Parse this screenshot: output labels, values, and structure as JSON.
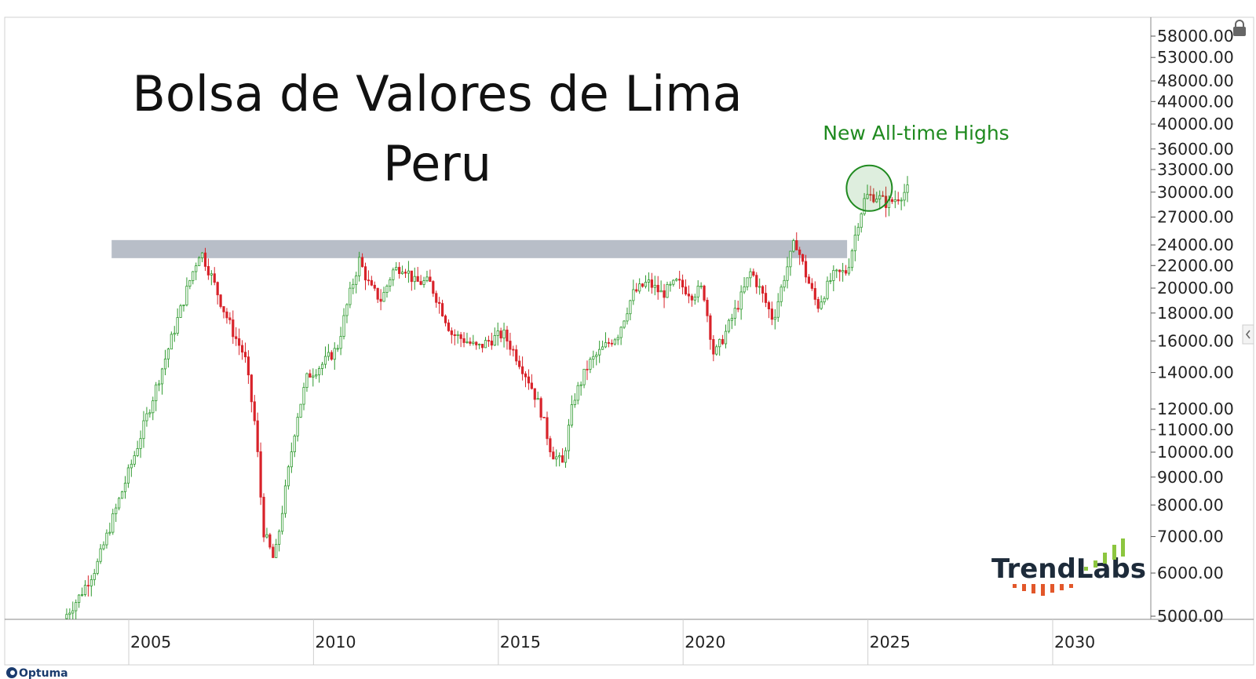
{
  "chart_data": {
    "type": "candlestick",
    "title": "Bolsa de Valores de Lima",
    "subtitle": "Peru",
    "annotation": "New All-time Highs",
    "y_scale": "log",
    "ylim": [
      4900,
      60000
    ],
    "xlim": [
      2002.4,
      2034.3
    ],
    "y_ticks": [
      58000,
      53000,
      48000,
      44000,
      40000,
      36000,
      33000,
      30000,
      27000,
      24000,
      22000,
      20000,
      18000,
      16000,
      14000,
      12000,
      11000,
      10000,
      9000,
      8000,
      7000,
      6000,
      5000
    ],
    "y_tick_labels": [
      "58000.00",
      "53000.00",
      "48000.00",
      "44000.00",
      "40000.00",
      "36000.00",
      "33000.00",
      "30000.00",
      "27000.00",
      "24000.00",
      "22000.00",
      "20000.00",
      "18000.00",
      "16000.00",
      "14000.00",
      "12000.00",
      "11000.00",
      "10000.00",
      "9000.00",
      "8000.00",
      "7000.00",
      "6000.00",
      "5000.00"
    ],
    "x_ticks": [
      2005,
      2010,
      2015,
      2020,
      2025,
      2030
    ],
    "x_tick_labels": [
      "2005",
      "2010",
      "2015",
      "2020",
      "2025",
      "2030"
    ],
    "resistance_band": {
      "from_year": 2003.9,
      "to_year": 2023.8,
      "low": 22700,
      "high": 24500
    },
    "highlight_circle": {
      "year": 2024.4,
      "value": 30500
    },
    "colors": {
      "up": "#2e9a2e",
      "down": "#d8232a",
      "band": "#b8bec8",
      "annotation": "#1f8a1f",
      "axis": "#999999"
    },
    "series_price_path": [
      [
        2002.6,
        4950
      ],
      [
        2003.0,
        5400
      ],
      [
        2003.5,
        6200
      ],
      [
        2004.0,
        7800
      ],
      [
        2004.5,
        9800
      ],
      [
        2005.0,
        12500
      ],
      [
        2005.5,
        16000
      ],
      [
        2006.0,
        20500
      ],
      [
        2006.3,
        23500
      ],
      [
        2006.6,
        21000
      ],
      [
        2006.9,
        18500
      ],
      [
        2007.2,
        16500
      ],
      [
        2007.5,
        15000
      ],
      [
        2007.8,
        11000
      ],
      [
        2008.0,
        7200
      ],
      [
        2008.3,
        6300
      ],
      [
        2008.6,
        8500
      ],
      [
        2008.9,
        11500
      ],
      [
        2009.2,
        13800
      ],
      [
        2009.6,
        14500
      ],
      [
        2010.0,
        15500
      ],
      [
        2010.3,
        19000
      ],
      [
        2010.6,
        22500
      ],
      [
        2010.9,
        20000
      ],
      [
        2011.2,
        19000
      ],
      [
        2011.5,
        21500
      ],
      [
        2011.8,
        22000
      ],
      [
        2012.1,
        20500
      ],
      [
        2012.5,
        20500
      ],
      [
        2012.8,
        18500
      ],
      [
        2013.1,
        16500
      ],
      [
        2013.5,
        16000
      ],
      [
        2013.8,
        15500
      ],
      [
        2014.1,
        16000
      ],
      [
        2014.5,
        16500
      ],
      [
        2014.9,
        14800
      ],
      [
        2015.2,
        13500
      ],
      [
        2015.5,
        12000
      ],
      [
        2015.8,
        10000
      ],
      [
        2016.1,
        9500
      ],
      [
        2016.4,
        12500
      ],
      [
        2016.8,
        14500
      ],
      [
        2017.2,
        15500
      ],
      [
        2017.6,
        16500
      ],
      [
        2018.0,
        19500
      ],
      [
        2018.4,
        20500
      ],
      [
        2018.8,
        19500
      ],
      [
        2019.2,
        20500
      ],
      [
        2019.6,
        19500
      ],
      [
        2019.9,
        20000
      ],
      [
        2020.2,
        15000
      ],
      [
        2020.5,
        16500
      ],
      [
        2020.9,
        19000
      ],
      [
        2021.2,
        21500
      ],
      [
        2021.5,
        19500
      ],
      [
        2021.8,
        17500
      ],
      [
        2022.1,
        21000
      ],
      [
        2022.4,
        24500
      ],
      [
        2022.7,
        21000
      ],
      [
        2023.0,
        18500
      ],
      [
        2023.4,
        21000
      ],
      [
        2023.8,
        21500
      ],
      [
        2024.1,
        26500
      ],
      [
        2024.3,
        29500
      ],
      [
        2024.6,
        29500
      ],
      [
        2024.9,
        28500
      ],
      [
        2025.2,
        29500
      ],
      [
        2025.5,
        30500
      ]
    ]
  },
  "brand": {
    "name": "TrendLabs"
  },
  "footer": {
    "vendor": "Optuma"
  }
}
